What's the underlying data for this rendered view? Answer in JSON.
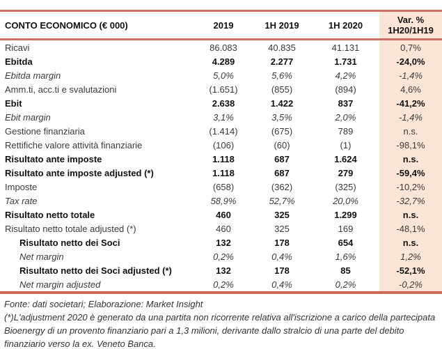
{
  "table": {
    "title": "CONTO ECONOMICO (€ 000)",
    "columns": [
      "2019",
      "1H 2019",
      "1H 2020"
    ],
    "var_header_line1": "Var. %",
    "var_header_line2": "1H20/1H19",
    "rows": [
      {
        "label": "Ricavi",
        "values": [
          "86.083",
          "40.835",
          "41.131"
        ],
        "var": "0,7%",
        "style": "regular",
        "indent": false
      },
      {
        "label": "Ebitda",
        "values": [
          "4.289",
          "2.277",
          "1.731"
        ],
        "var": "-24,0%",
        "style": "bold",
        "indent": false
      },
      {
        "label": "Ebitda margin",
        "values": [
          "5,0%",
          "5,6%",
          "4,2%"
        ],
        "var": "-1,4%",
        "style": "italic",
        "indent": false
      },
      {
        "label": "Amm.ti, acc.ti e svalutazioni",
        "values": [
          "(1.651)",
          "(855)",
          "(894)"
        ],
        "var": "4,6%",
        "style": "regular",
        "indent": false
      },
      {
        "label": "Ebit",
        "values": [
          "2.638",
          "1.422",
          "837"
        ],
        "var": "-41,2%",
        "style": "bold",
        "indent": false
      },
      {
        "label": "Ebit margin",
        "values": [
          "3,1%",
          "3,5%",
          "2,0%"
        ],
        "var": "-1,4%",
        "style": "italic",
        "indent": false
      },
      {
        "label": "Gestione finanziaria",
        "values": [
          "(1.414)",
          "(675)",
          "789"
        ],
        "var": "n.s.",
        "style": "regular",
        "indent": false
      },
      {
        "label": "Rettifiche valore attività finanziarie",
        "values": [
          "(106)",
          "(60)",
          "(1)"
        ],
        "var": "-98,1%",
        "style": "regular",
        "indent": false
      },
      {
        "label": "Risultato ante imposte",
        "values": [
          "1.118",
          "687",
          "1.624"
        ],
        "var": "n.s.",
        "style": "bold",
        "indent": false
      },
      {
        "label": "Risultato ante imposte adjusted (*)",
        "values": [
          "1.118",
          "687",
          "279"
        ],
        "var": "-59,4%",
        "style": "bold",
        "indent": false
      },
      {
        "label": "Imposte",
        "values": [
          "(658)",
          "(362)",
          "(325)"
        ],
        "var": "-10,2%",
        "style": "regular",
        "indent": false
      },
      {
        "label": "Tax rate",
        "values": [
          "58,9%",
          "52,7%",
          "20,0%"
        ],
        "var": "-32,7%",
        "style": "italic",
        "indent": false
      },
      {
        "label": "Risultato netto totale",
        "values": [
          "460",
          "325",
          "1.299"
        ],
        "var": "n.s.",
        "style": "bold",
        "indent": false
      },
      {
        "label": "Risultato netto totale adjusted (*)",
        "values": [
          "460",
          "325",
          "169"
        ],
        "var": "-48,1%",
        "style": "regular",
        "indent": false
      },
      {
        "label": "Risultato netto dei Soci",
        "values": [
          "132",
          "178",
          "654"
        ],
        "var": "n.s.",
        "style": "bold",
        "indent": true
      },
      {
        "label": "Net margin",
        "values": [
          "0,2%",
          "0,4%",
          "1,6%"
        ],
        "var": "1,2%",
        "style": "italic",
        "indent": true
      },
      {
        "label": "Risultato netto dei Soci adjusted (*)",
        "values": [
          "132",
          "178",
          "85"
        ],
        "var": "-52,1%",
        "style": "bold",
        "indent": true
      },
      {
        "label": "Net margin adjusted",
        "values": [
          "0,2%",
          "0,4%",
          "0,2%"
        ],
        "var": "-0,2%",
        "style": "italic",
        "indent": true
      }
    ]
  },
  "footer": {
    "source": "Fonte: dati societari; Elaborazione: Market Insight",
    "note": "(*)L'adjustment 2020 è generato da una partita non ricorrente relativa all'iscrizione a carico della partecipata Bioenergy di un provento finanziario pari a 1,3 milioni, derivante dallo stralcio di una parte del debito finanziario verso la ex. Veneto Banca."
  },
  "colors": {
    "accent_line": "#cb7065",
    "bottom_line": "#cf6a57",
    "var_column_bg": "#fbe5d6",
    "text": "#3a3a3a"
  }
}
